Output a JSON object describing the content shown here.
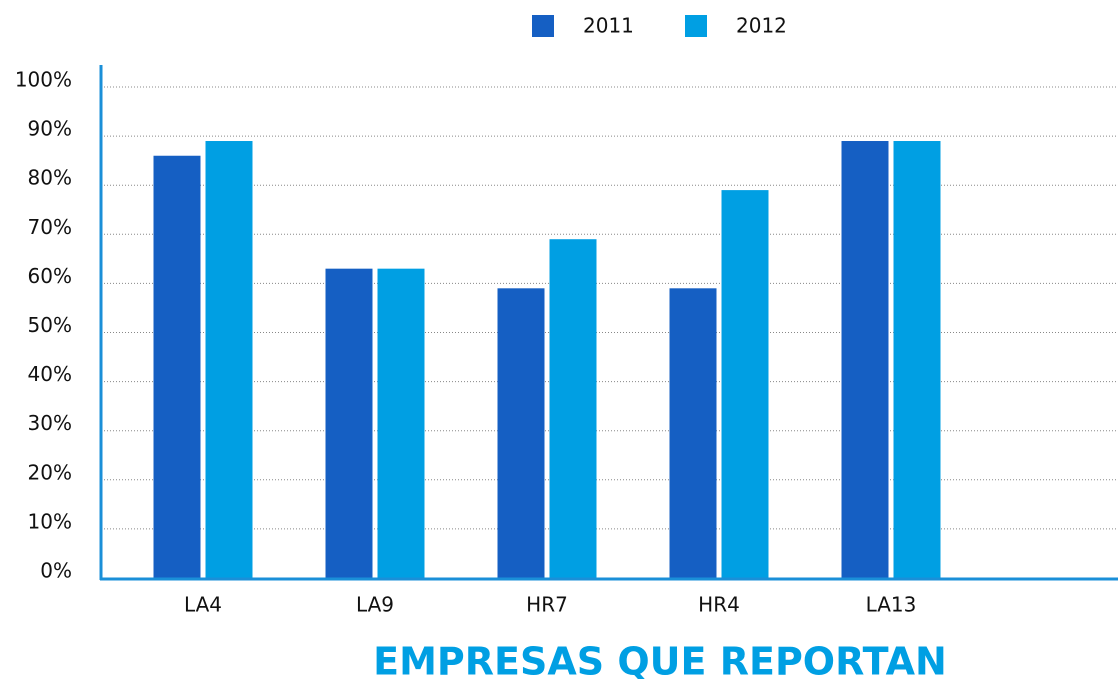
{
  "chart_data": {
    "type": "bar",
    "title": "EMPRESAS QUE REPORTAN",
    "categories": [
      "LA4",
      "LA9",
      "HR7",
      "HR4",
      "LA13"
    ],
    "series": [
      {
        "name": "2011",
        "color": "#155fc3",
        "values": [
          86,
          63,
          59,
          59,
          89
        ]
      },
      {
        "name": "2012",
        "color": "#009fe3",
        "values": [
          89,
          63,
          69,
          79,
          89
        ]
      }
    ],
    "ylim": [
      0,
      100
    ],
    "yticks": [
      {
        "value": 0,
        "label": "0%"
      },
      {
        "value": 10,
        "label": "10%"
      },
      {
        "value": 20,
        "label": "20%"
      },
      {
        "value": 30,
        "label": "30%"
      },
      {
        "value": 40,
        "label": "40%"
      },
      {
        "value": 50,
        "label": "50%"
      },
      {
        "value": 60,
        "label": "60%"
      },
      {
        "value": 70,
        "label": "70%"
      },
      {
        "value": 80,
        "label": "80%"
      },
      {
        "value": 90,
        "label": "90%"
      },
      {
        "value": 100,
        "label": "100%"
      }
    ],
    "grid": true,
    "legend": "top"
  }
}
